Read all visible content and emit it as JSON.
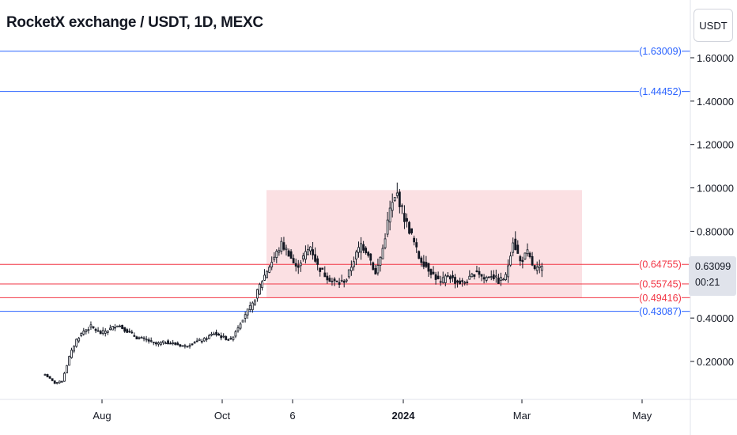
{
  "header": {
    "title": "RocketX exchange / USDT, 1D, MEXC"
  },
  "toolbar": {
    "unit_label": "USDT"
  },
  "price_scale": {
    "ticks": [
      "1.60000",
      "1.40000",
      "1.20000",
      "1.00000",
      "0.80000",
      "0.40000",
      "0.20000"
    ],
    "current_price": "0.63099",
    "countdown": "00:21"
  },
  "time_axis": {
    "labels": [
      "Aug",
      "Oct",
      "6",
      "2024",
      "Mar",
      "May"
    ]
  },
  "colors": {
    "blue_line": "#2962ff",
    "red_line": "#f23645",
    "range_box": "#fbe0e3",
    "candles": "#131722"
  },
  "chart_data": {
    "type": "candlestick",
    "y_ticks": [
      1.6,
      1.4,
      1.2,
      1.0,
      0.8,
      0.4,
      0.2
    ],
    "x_tick_labels": [
      "Aug",
      "Oct",
      "6",
      "2024",
      "Mar",
      "May"
    ],
    "horizontal_levels": [
      {
        "label": "(1.63009)",
        "value": 1.63009,
        "color": "blue"
      },
      {
        "label": "(1.44452)",
        "value": 1.44452,
        "color": "blue"
      },
      {
        "label": "(0.64755)",
        "value": 0.64755,
        "color": "red"
      },
      {
        "label": "(0.55745)",
        "value": 0.55745,
        "color": "red"
      },
      {
        "label": "(0.49416)",
        "value": 0.49416,
        "color": "red"
      },
      {
        "label": "(0.43087)",
        "value": 0.43087,
        "color": "blue"
      }
    ],
    "range_box": {
      "from": "Nov",
      "to": "Apr",
      "low": 0.49416,
      "high": 0.99
    },
    "price_path": [
      [
        0,
        0.14
      ],
      [
        4,
        0.1
      ],
      [
        7,
        0.11
      ],
      [
        10,
        0.22
      ],
      [
        13,
        0.3
      ],
      [
        16,
        0.34
      ],
      [
        19,
        0.36
      ],
      [
        23,
        0.33
      ],
      [
        27,
        0.35
      ],
      [
        30,
        0.37
      ],
      [
        34,
        0.34
      ],
      [
        38,
        0.31
      ],
      [
        42,
        0.3
      ],
      [
        46,
        0.28
      ],
      [
        50,
        0.29
      ],
      [
        54,
        0.28
      ],
      [
        58,
        0.27
      ],
      [
        62,
        0.29
      ],
      [
        66,
        0.3
      ],
      [
        70,
        0.33
      ],
      [
        74,
        0.31
      ],
      [
        77,
        0.3
      ],
      [
        80,
        0.36
      ],
      [
        83,
        0.42
      ],
      [
        86,
        0.46
      ],
      [
        89,
        0.55
      ],
      [
        92,
        0.62
      ],
      [
        95,
        0.68
      ],
      [
        98,
        0.74
      ],
      [
        101,
        0.7
      ],
      [
        104,
        0.63
      ],
      [
        107,
        0.68
      ],
      [
        110,
        0.73
      ],
      [
        113,
        0.64
      ],
      [
        116,
        0.6
      ],
      [
        119,
        0.57
      ],
      [
        122,
        0.56
      ],
      [
        125,
        0.58
      ],
      [
        128,
        0.67
      ],
      [
        131,
        0.74
      ],
      [
        134,
        0.7
      ],
      [
        137,
        0.6
      ],
      [
        140,
        0.72
      ],
      [
        143,
        0.9
      ],
      [
        146,
        0.97
      ],
      [
        149,
        0.86
      ],
      [
        152,
        0.78
      ],
      [
        155,
        0.68
      ],
      [
        158,
        0.64
      ],
      [
        161,
        0.6
      ],
      [
        164,
        0.56
      ],
      [
        167,
        0.6
      ],
      [
        170,
        0.57
      ],
      [
        173,
        0.56
      ],
      [
        176,
        0.58
      ],
      [
        179,
        0.62
      ],
      [
        182,
        0.58
      ],
      [
        185,
        0.6
      ],
      [
        188,
        0.57
      ],
      [
        191,
        0.59
      ],
      [
        194,
        0.76
      ],
      [
        197,
        0.66
      ],
      [
        200,
        0.7
      ],
      [
        203,
        0.62
      ],
      [
        206,
        0.63
      ]
    ]
  }
}
